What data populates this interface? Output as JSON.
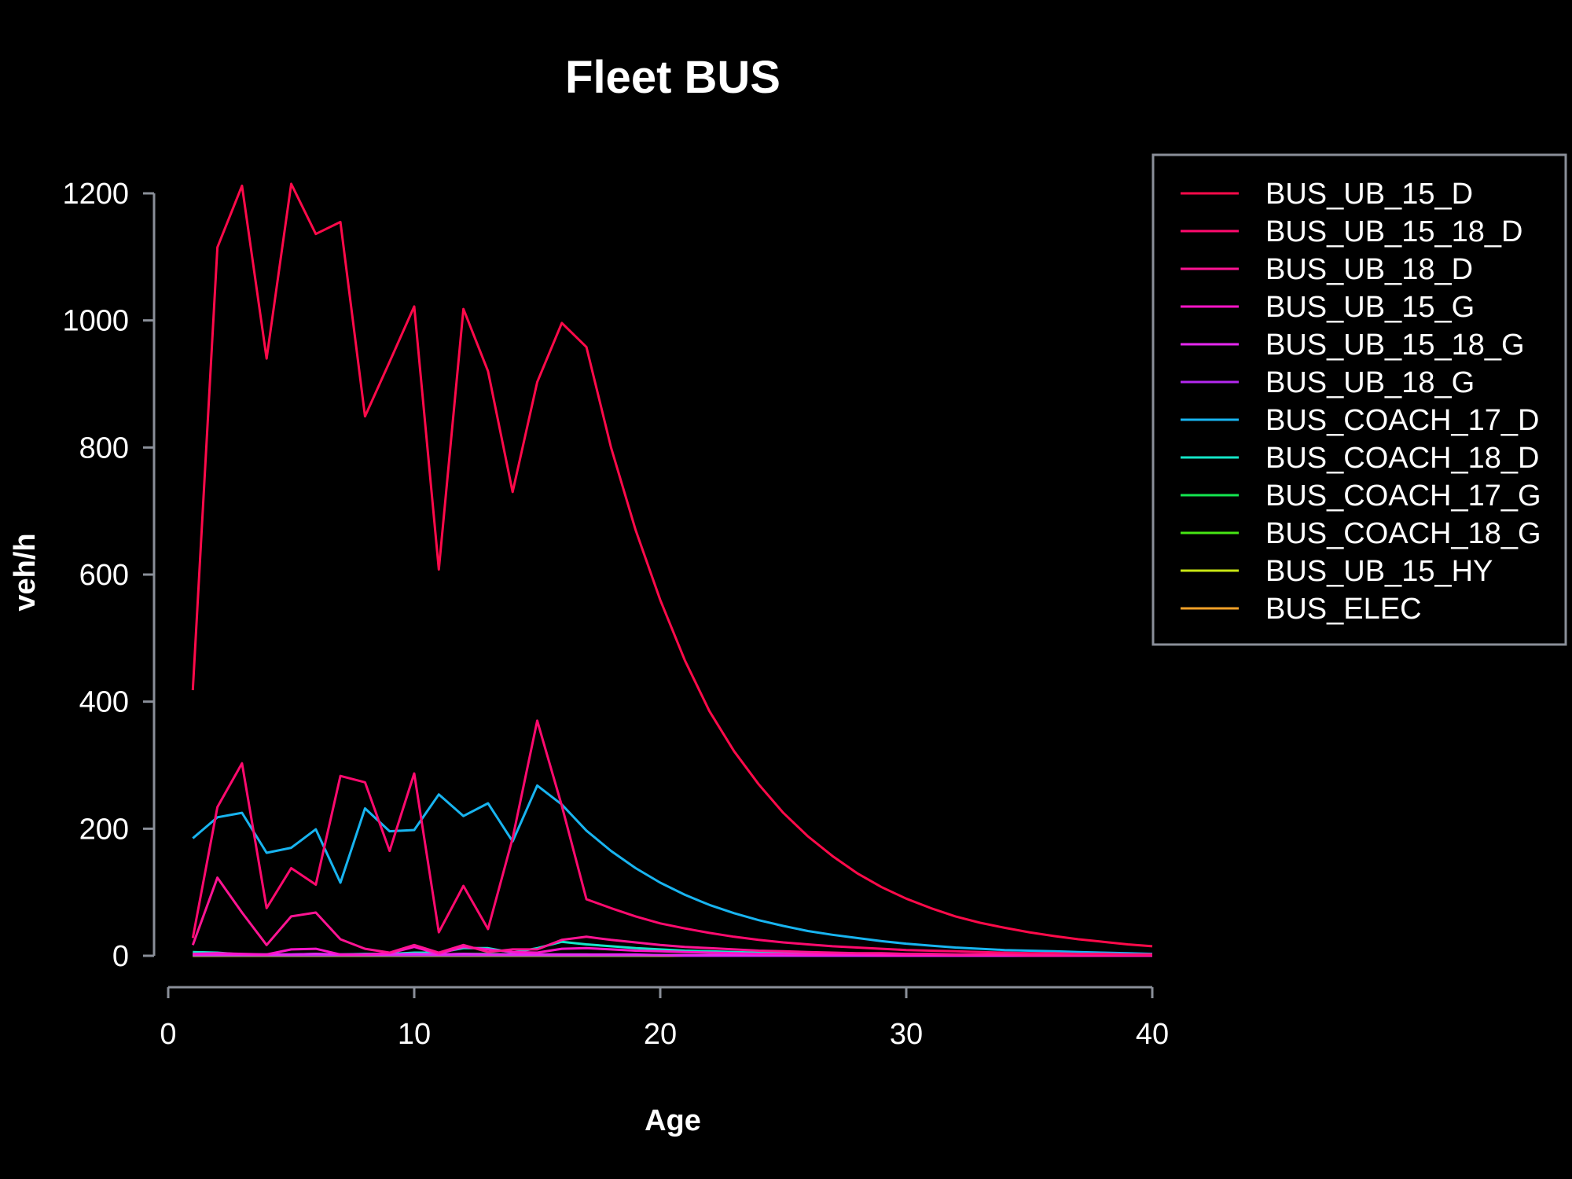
{
  "chart_data": {
    "type": "line",
    "title": "Fleet BUS",
    "xlabel": "Age",
    "ylabel": "veh/h",
    "xlim": [
      0,
      40
    ],
    "ylim": [
      0,
      1200
    ],
    "x_ticks": [
      0,
      10,
      20,
      30,
      40
    ],
    "y_ticks": [
      0,
      200,
      400,
      600,
      800,
      1000,
      1200
    ],
    "x_tick_labels": [
      "0",
      "10",
      "20",
      "30",
      "40"
    ],
    "y_tick_labels": [
      "0",
      "200",
      "400",
      "600",
      "800",
      "1000",
      "1200"
    ],
    "grid": false,
    "legend_position": "top-right",
    "background": "#000000",
    "x": [
      1,
      2,
      3,
      4,
      5,
      6,
      7,
      8,
      9,
      10,
      11,
      12,
      13,
      14,
      15,
      16,
      17,
      18,
      19,
      20,
      21,
      22,
      23,
      24,
      25,
      26,
      27,
      28,
      29,
      30,
      31,
      32,
      33,
      34,
      35,
      36,
      37,
      38,
      39,
      40
    ],
    "series": [
      {
        "name": "BUS_UB_15_D",
        "color": "#ff0a4a",
        "values": [
          418,
          1115,
          1212,
          940,
          1215,
          1136,
          1155,
          849,
          935,
          1022,
          608,
          1018,
          920,
          730,
          903,
          996,
          958,
          800,
          670,
          560,
          465,
          385,
          322,
          270,
          225,
          188,
          157,
          130,
          108,
          90,
          75,
          62,
          52,
          44,
          37,
          31,
          26,
          22,
          18,
          15
        ]
      },
      {
        "name": "BUS_UB_15_18_D",
        "color": "#ff0a6e",
        "values": [
          28,
          234,
          303,
          75,
          138,
          112,
          283,
          273,
          165,
          287,
          37,
          110,
          42,
          185,
          370,
          236,
          89,
          75,
          62,
          51,
          43,
          36,
          30,
          25,
          21,
          18,
          15,
          13,
          11,
          9,
          8,
          7,
          6,
          5,
          4,
          4,
          3,
          3,
          2,
          2
        ]
      },
      {
        "name": "BUS_UB_18_D",
        "color": "#ff1493",
        "values": [
          17,
          123,
          68,
          17,
          62,
          68,
          26,
          11,
          5,
          17,
          5,
          17,
          6,
          10,
          10,
          25,
          30,
          25,
          21,
          17,
          14,
          12,
          10,
          8,
          7,
          6,
          5,
          4,
          4,
          3,
          3,
          2,
          2,
          2,
          1,
          1,
          1,
          1,
          1,
          1
        ]
      },
      {
        "name": "BUS_UB_15_G",
        "color": "#ff14c8",
        "values": [
          3,
          4,
          3,
          2,
          10,
          11,
          2,
          2,
          4,
          14,
          3,
          14,
          10,
          6,
          5,
          11,
          12,
          10,
          8,
          7,
          6,
          5,
          4,
          3,
          3,
          2,
          2,
          2,
          1,
          1,
          1,
          1,
          1,
          1,
          0,
          0,
          0,
          0,
          0,
          0
        ]
      },
      {
        "name": "BUS_UB_15_18_G",
        "color": "#e628f0",
        "values": [
          2,
          2,
          2,
          2,
          2,
          3,
          2,
          2,
          2,
          3,
          2,
          3,
          2,
          2,
          2,
          2,
          2,
          2,
          2,
          1,
          1,
          1,
          1,
          1,
          1,
          1,
          1,
          1,
          0,
          0,
          0,
          0,
          0,
          0,
          0,
          0,
          0,
          0,
          0,
          0
        ]
      },
      {
        "name": "BUS_UB_18_G",
        "color": "#b428f0",
        "values": [
          1,
          1,
          1,
          1,
          1,
          1,
          1,
          1,
          1,
          1,
          1,
          1,
          1,
          1,
          1,
          1,
          1,
          1,
          1,
          1,
          0,
          0,
          0,
          0,
          0,
          0,
          0,
          0,
          0,
          0,
          0,
          0,
          0,
          0,
          0,
          0,
          0,
          0,
          0,
          0
        ]
      },
      {
        "name": "BUS_COACH_17_D",
        "color": "#18b4f0",
        "values": [
          185,
          218,
          225,
          162,
          170,
          199,
          115,
          232,
          196,
          198,
          254,
          220,
          240,
          180,
          268,
          238,
          197,
          165,
          138,
          115,
          96,
          80,
          67,
          56,
          47,
          39,
          33,
          28,
          23,
          19,
          16,
          13,
          11,
          9,
          8,
          7,
          6,
          5,
          4,
          3
        ]
      },
      {
        "name": "BUS_COACH_18_D",
        "color": "#14e6c8",
        "values": [
          6,
          5,
          2,
          2,
          2,
          3,
          2,
          3,
          3,
          5,
          5,
          12,
          12,
          5,
          12,
          22,
          18,
          15,
          12,
          10,
          8,
          7,
          6,
          5,
          4,
          3,
          3,
          2,
          2,
          2,
          1,
          1,
          1,
          1,
          1,
          1,
          0,
          0,
          0,
          0
        ]
      },
      {
        "name": "BUS_COACH_17_G",
        "color": "#14e650",
        "values": [
          4,
          4,
          1,
          2,
          1,
          2,
          2,
          2,
          1,
          2,
          2,
          3,
          3,
          2,
          2,
          2,
          2,
          1,
          1,
          1,
          1,
          1,
          1,
          1,
          0,
          0,
          0,
          0,
          0,
          0,
          0,
          0,
          0,
          0,
          0,
          0,
          0,
          0,
          0,
          0
        ]
      },
      {
        "name": "BUS_COACH_18_G",
        "color": "#46e614",
        "values": [
          1,
          1,
          1,
          1,
          1,
          1,
          1,
          1,
          1,
          1,
          1,
          1,
          1,
          1,
          1,
          1,
          1,
          1,
          1,
          1,
          1,
          1,
          1,
          1,
          1,
          1,
          1,
          1,
          1,
          1,
          1,
          1,
          1,
          1,
          1,
          1,
          1,
          1,
          1,
          1
        ]
      },
      {
        "name": "BUS_UB_15_HY",
        "color": "#c8e614",
        "values": [
          0,
          0,
          0,
          0,
          0,
          0,
          0,
          0,
          0,
          0,
          0,
          0,
          0,
          0,
          0,
          0,
          0,
          0,
          0,
          0,
          0,
          0,
          0,
          0,
          0,
          0,
          0,
          0,
          0,
          0,
          0,
          0,
          0,
          0,
          0,
          0,
          0,
          0,
          0,
          0
        ]
      },
      {
        "name": "BUS_ELEC",
        "color": "#f0a028",
        "values": [
          0,
          0,
          0,
          0,
          0,
          0,
          0,
          0,
          0,
          0,
          0,
          0,
          0,
          0,
          0,
          0,
          0,
          0,
          0,
          0,
          0,
          0,
          0,
          0,
          0,
          0,
          0,
          0,
          0,
          0,
          0,
          0,
          0,
          0,
          0,
          0,
          0,
          0,
          0,
          0
        ]
      }
    ]
  }
}
